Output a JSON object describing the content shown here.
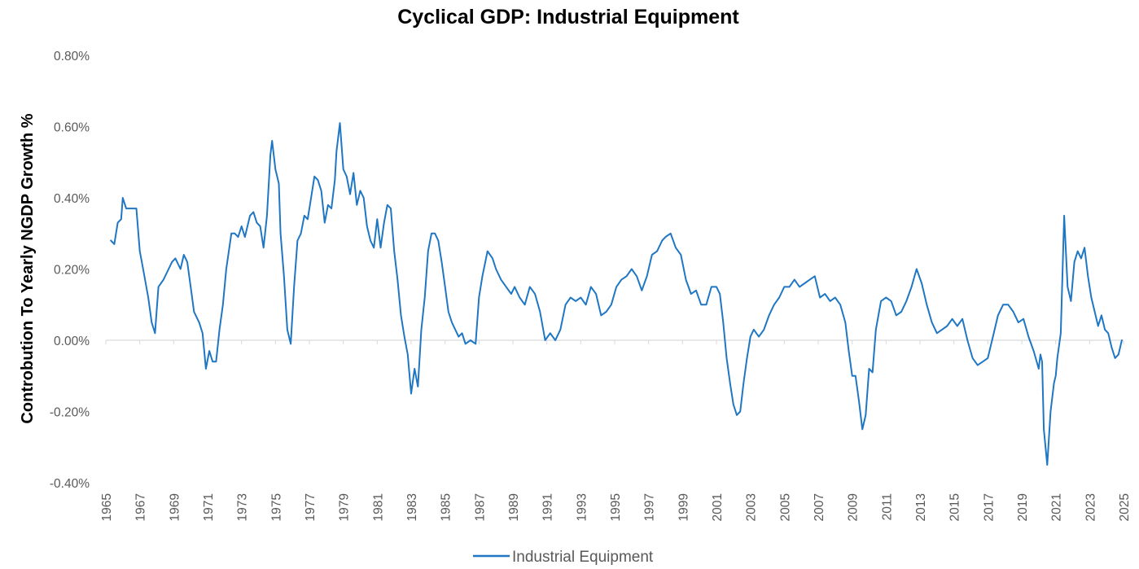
{
  "chart_data": {
    "type": "line",
    "title": "Cyclical GDP: Industrial Equipment",
    "ylabel": "Controbution To Yearly NGDP Growth %",
    "xlabel": "",
    "ylim": [
      -0.4,
      0.8
    ],
    "yticks": [
      -0.4,
      -0.2,
      0.0,
      0.2,
      0.4,
      0.6,
      0.8
    ],
    "ytick_labels": [
      "-0.40%",
      "-0.20%",
      "0.00%",
      "0.20%",
      "0.40%",
      "0.60%",
      "0.80%"
    ],
    "xlim": [
      1965,
      2025
    ],
    "xticks": [
      1965,
      1967,
      1969,
      1971,
      1973,
      1975,
      1977,
      1979,
      1981,
      1983,
      1985,
      1987,
      1989,
      1991,
      1993,
      1995,
      1997,
      1999,
      2001,
      2003,
      2005,
      2007,
      2009,
      2011,
      2013,
      2015,
      2017,
      2019,
      2021,
      2023,
      2025
    ],
    "xtick_labels": [
      "1965",
      "1967",
      "1969",
      "1971",
      "1973",
      "1975",
      "1977",
      "1979",
      "1981",
      "1983",
      "1985",
      "1987",
      "1989",
      "1991",
      "1993",
      "1995",
      "1997",
      "1999",
      "2001",
      "2003",
      "2005",
      "2007",
      "2009",
      "2011",
      "2013",
      "2015",
      "2017",
      "2019",
      "2021",
      "2023",
      "2025"
    ],
    "grid": false,
    "legend": "bottom",
    "color": "#1f77c4",
    "series": [
      {
        "name": "Industrial Equipment",
        "x": [
          1965.3,
          1965.5,
          1965.7,
          1965.9,
          1966.0,
          1966.2,
          1966.5,
          1966.8,
          1967.0,
          1967.2,
          1967.5,
          1967.7,
          1967.9,
          1968.1,
          1968.4,
          1968.7,
          1968.9,
          1969.1,
          1969.4,
          1969.6,
          1969.8,
          1970.0,
          1970.2,
          1970.5,
          1970.7,
          1970.9,
          1971.1,
          1971.3,
          1971.5,
          1971.7,
          1971.9,
          1972.1,
          1972.4,
          1972.6,
          1972.8,
          1973.0,
          1973.2,
          1973.5,
          1973.7,
          1973.9,
          1974.1,
          1974.3,
          1974.5,
          1974.7,
          1974.8,
          1975.0,
          1975.2,
          1975.3,
          1975.5,
          1975.7,
          1975.9,
          1976.1,
          1976.3,
          1976.5,
          1976.7,
          1976.9,
          1977.1,
          1977.3,
          1977.5,
          1977.7,
          1977.9,
          1978.1,
          1978.3,
          1978.5,
          1978.6,
          1978.8,
          1979.0,
          1979.2,
          1979.4,
          1979.6,
          1979.8,
          1980.0,
          1980.2,
          1980.4,
          1980.6,
          1980.8,
          1981.0,
          1981.2,
          1981.4,
          1981.6,
          1981.8,
          1982.0,
          1982.2,
          1982.4,
          1982.6,
          1982.8,
          1983.0,
          1983.2,
          1983.4,
          1983.6,
          1983.8,
          1984.0,
          1984.2,
          1984.4,
          1984.6,
          1984.8,
          1985.0,
          1985.2,
          1985.4,
          1985.6,
          1985.8,
          1986.0,
          1986.2,
          1986.5,
          1986.8,
          1987.0,
          1987.2,
          1987.5,
          1987.8,
          1988.0,
          1988.3,
          1988.6,
          1988.9,
          1989.1,
          1989.4,
          1989.7,
          1990.0,
          1990.3,
          1990.6,
          1990.9,
          1991.2,
          1991.5,
          1991.8,
          1992.1,
          1992.4,
          1992.7,
          1993.0,
          1993.3,
          1993.6,
          1993.9,
          1994.2,
          1994.5,
          1994.8,
          1995.1,
          1995.4,
          1995.7,
          1996.0,
          1996.3,
          1996.6,
          1996.9,
          1997.2,
          1997.5,
          1997.8,
          1998.0,
          1998.3,
          1998.6,
          1998.9,
          1999.2,
          1999.5,
          1999.8,
          2000.1,
          2000.4,
          2000.7,
          2001.0,
          2001.2,
          2001.4,
          2001.6,
          2001.8,
          2002.0,
          2002.2,
          2002.4,
          2002.6,
          2002.8,
          2003.0,
          2003.2,
          2003.5,
          2003.8,
          2004.1,
          2004.4,
          2004.7,
          2005.0,
          2005.3,
          2005.6,
          2005.9,
          2006.2,
          2006.5,
          2006.8,
          2007.1,
          2007.4,
          2007.7,
          2008.0,
          2008.3,
          2008.6,
          2008.8,
          2009.0,
          2009.2,
          2009.4,
          2009.6,
          2009.8,
          2010.0,
          2010.2,
          2010.4,
          2010.7,
          2011.0,
          2011.3,
          2011.6,
          2011.9,
          2012.2,
          2012.5,
          2012.8,
          2013.1,
          2013.4,
          2013.7,
          2014.0,
          2014.3,
          2014.6,
          2014.9,
          2015.2,
          2015.5,
          2015.8,
          2016.1,
          2016.4,
          2016.7,
          2017.0,
          2017.3,
          2017.6,
          2017.9,
          2018.2,
          2018.5,
          2018.8,
          2019.1,
          2019.4,
          2019.7,
          2020.0,
          2020.1,
          2020.2,
          2020.3,
          2020.5,
          2020.7,
          2020.9,
          2021.0,
          2021.1,
          2021.3,
          2021.5,
          2021.7,
          2021.9,
          2022.1,
          2022.3,
          2022.5,
          2022.7,
          2022.9,
          2023.1,
          2023.3,
          2023.5,
          2023.7,
          2023.9,
          2024.1,
          2024.3,
          2024.5,
          2024.7,
          2024.9
        ],
        "y": [
          0.28,
          0.27,
          0.33,
          0.34,
          0.4,
          0.37,
          0.37,
          0.37,
          0.25,
          0.2,
          0.12,
          0.05,
          0.02,
          0.15,
          0.17,
          0.2,
          0.22,
          0.23,
          0.2,
          0.24,
          0.22,
          0.15,
          0.08,
          0.05,
          0.02,
          -0.08,
          -0.03,
          -0.06,
          -0.06,
          0.03,
          0.1,
          0.2,
          0.3,
          0.3,
          0.29,
          0.32,
          0.29,
          0.35,
          0.36,
          0.33,
          0.32,
          0.26,
          0.35,
          0.52,
          0.56,
          0.48,
          0.44,
          0.3,
          0.18,
          0.03,
          -0.01,
          0.15,
          0.28,
          0.3,
          0.35,
          0.34,
          0.4,
          0.46,
          0.45,
          0.42,
          0.33,
          0.38,
          0.37,
          0.45,
          0.53,
          0.61,
          0.48,
          0.46,
          0.41,
          0.47,
          0.38,
          0.42,
          0.4,
          0.32,
          0.28,
          0.26,
          0.34,
          0.26,
          0.33,
          0.38,
          0.37,
          0.25,
          0.17,
          0.07,
          0.01,
          -0.04,
          -0.15,
          -0.08,
          -0.13,
          0.03,
          0.12,
          0.25,
          0.3,
          0.3,
          0.28,
          0.22,
          0.15,
          0.08,
          0.05,
          0.03,
          0.01,
          0.02,
          -0.01,
          0.0,
          -0.01,
          0.12,
          0.18,
          0.25,
          0.23,
          0.2,
          0.17,
          0.15,
          0.13,
          0.15,
          0.12,
          0.1,
          0.15,
          0.13,
          0.08,
          0.0,
          0.02,
          0.0,
          0.03,
          0.1,
          0.12,
          0.11,
          0.12,
          0.1,
          0.15,
          0.13,
          0.07,
          0.08,
          0.1,
          0.15,
          0.17,
          0.18,
          0.2,
          0.18,
          0.14,
          0.18,
          0.24,
          0.25,
          0.28,
          0.29,
          0.3,
          0.26,
          0.24,
          0.17,
          0.13,
          0.14,
          0.1,
          0.1,
          0.15,
          0.15,
          0.13,
          0.05,
          -0.05,
          -0.12,
          -0.18,
          -0.21,
          -0.2,
          -0.12,
          -0.05,
          0.01,
          0.03,
          0.01,
          0.03,
          0.07,
          0.1,
          0.12,
          0.15,
          0.15,
          0.17,
          0.15,
          0.16,
          0.17,
          0.18,
          0.12,
          0.13,
          0.11,
          0.12,
          0.1,
          0.05,
          -0.03,
          -0.1,
          -0.1,
          -0.17,
          -0.25,
          -0.21,
          -0.08,
          -0.09,
          0.03,
          0.11,
          0.12,
          0.11,
          0.07,
          0.08,
          0.11,
          0.15,
          0.2,
          0.16,
          0.1,
          0.05,
          0.02,
          0.03,
          0.04,
          0.06,
          0.04,
          0.06,
          0.0,
          -0.05,
          -0.07,
          -0.06,
          -0.05,
          0.01,
          0.07,
          0.1,
          0.1,
          0.08,
          0.05,
          0.06,
          0.01,
          -0.03,
          -0.08,
          -0.04,
          -0.06,
          -0.25,
          -0.35,
          -0.2,
          -0.12,
          -0.1,
          -0.05,
          0.02,
          0.35,
          0.15,
          0.11,
          0.22,
          0.25,
          0.23,
          0.26,
          0.18,
          0.12,
          0.08,
          0.04,
          0.07,
          0.03,
          0.02,
          -0.02,
          -0.05,
          -0.04,
          0.0
        ]
      }
    ]
  }
}
